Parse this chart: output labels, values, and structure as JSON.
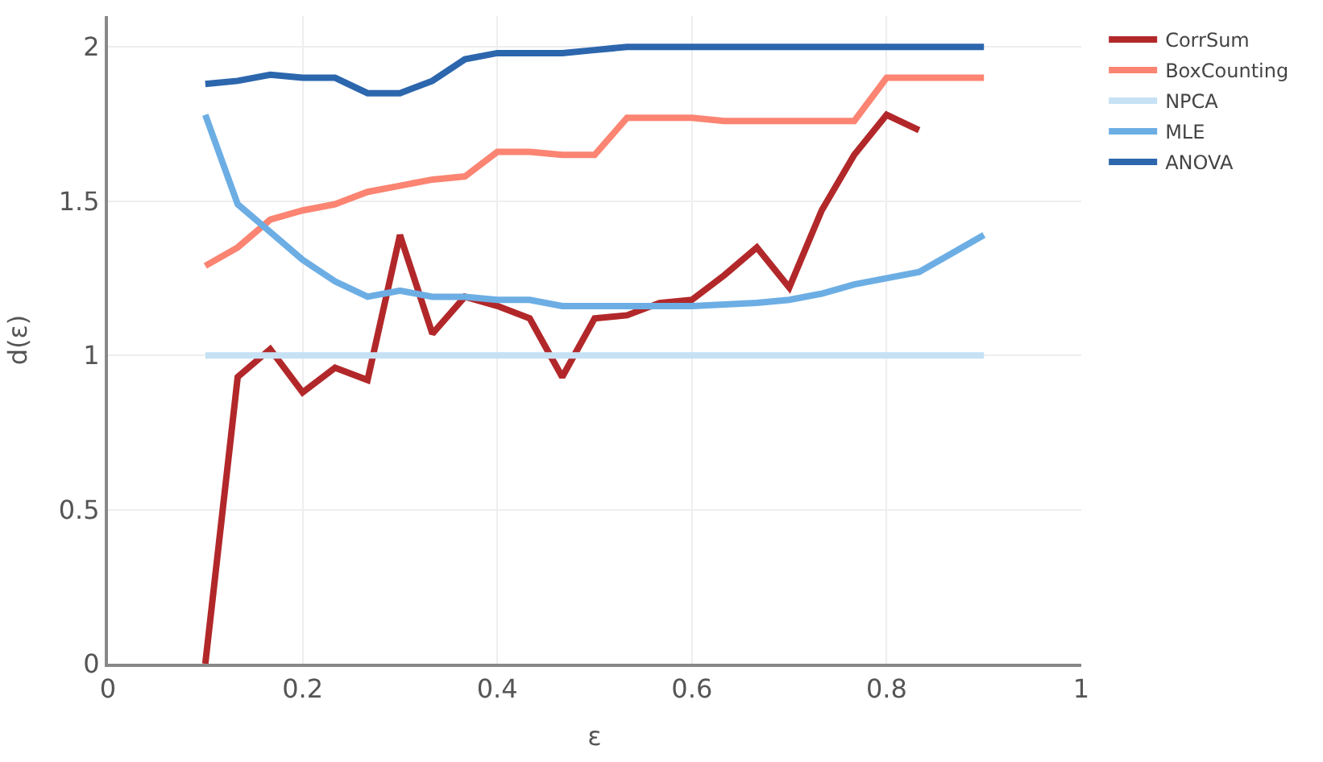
{
  "chart_data": {
    "type": "line",
    "xlabel": "ε",
    "ylabel": "d(ε)",
    "x": [
      0.1,
      0.1333,
      0.1667,
      0.2,
      0.2333,
      0.2667,
      0.3,
      0.3333,
      0.3667,
      0.4,
      0.4333,
      0.4667,
      0.5,
      0.5333,
      0.5667,
      0.6,
      0.6333,
      0.6667,
      0.7,
      0.7333,
      0.7667,
      0.8,
      0.8333,
      0.8667,
      0.9
    ],
    "series": [
      {
        "name": "CorrSum",
        "color": "#b2282a",
        "values": [
          0,
          0.93,
          1.02,
          0.88,
          0.96,
          0.92,
          1.39,
          1.07,
          1.19,
          1.16,
          1.12,
          0.93,
          1.12,
          1.13,
          1.17,
          1.18,
          1.26,
          1.35,
          1.22,
          1.47,
          1.65,
          1.78,
          1.73,
          null,
          null
        ]
      },
      {
        "name": "BoxCounting",
        "color": "#fb8472",
        "values": [
          1.29,
          1.35,
          1.44,
          1.47,
          1.49,
          1.53,
          1.55,
          1.57,
          1.58,
          1.66,
          1.66,
          1.65,
          1.65,
          1.77,
          1.77,
          1.77,
          1.76,
          1.76,
          1.76,
          1.76,
          1.76,
          1.9,
          1.9,
          1.9,
          1.9
        ]
      },
      {
        "name": "NPCA",
        "color": "#c6e1f4",
        "values": [
          1,
          1,
          1,
          1,
          1,
          1,
          1,
          1,
          1,
          1,
          1,
          1,
          1,
          1,
          1,
          1,
          1,
          1,
          1,
          1,
          1,
          1,
          1,
          1,
          1
        ]
      },
      {
        "name": "MLE",
        "color": "#6caee4",
        "values": [
          1.78,
          1.49,
          1.4,
          1.31,
          1.24,
          1.19,
          1.21,
          1.19,
          1.19,
          1.18,
          1.18,
          1.16,
          1.16,
          1.16,
          1.16,
          1.16,
          1.165,
          1.17,
          1.18,
          1.2,
          1.23,
          1.25,
          1.27,
          1.33,
          1.39
        ]
      },
      {
        "name": "ANOVA",
        "color": "#2c66ad",
        "values": [
          1.88,
          1.89,
          1.91,
          1.9,
          1.9,
          1.85,
          1.85,
          1.89,
          1.96,
          1.98,
          1.98,
          1.98,
          1.99,
          2,
          2,
          2,
          2,
          2,
          2,
          2,
          2,
          2,
          2,
          2,
          2
        ]
      }
    ],
    "xlim": [
      0,
      1
    ],
    "xticks": [
      0,
      0.2,
      0.4,
      0.6,
      0.8,
      1
    ],
    "ylim": [
      0,
      2.1
    ],
    "yticks": [
      0,
      0.5,
      1,
      1.5,
      2
    ],
    "grid": true,
    "legend": "top right",
    "marker": "none",
    "line_style": "solid"
  }
}
